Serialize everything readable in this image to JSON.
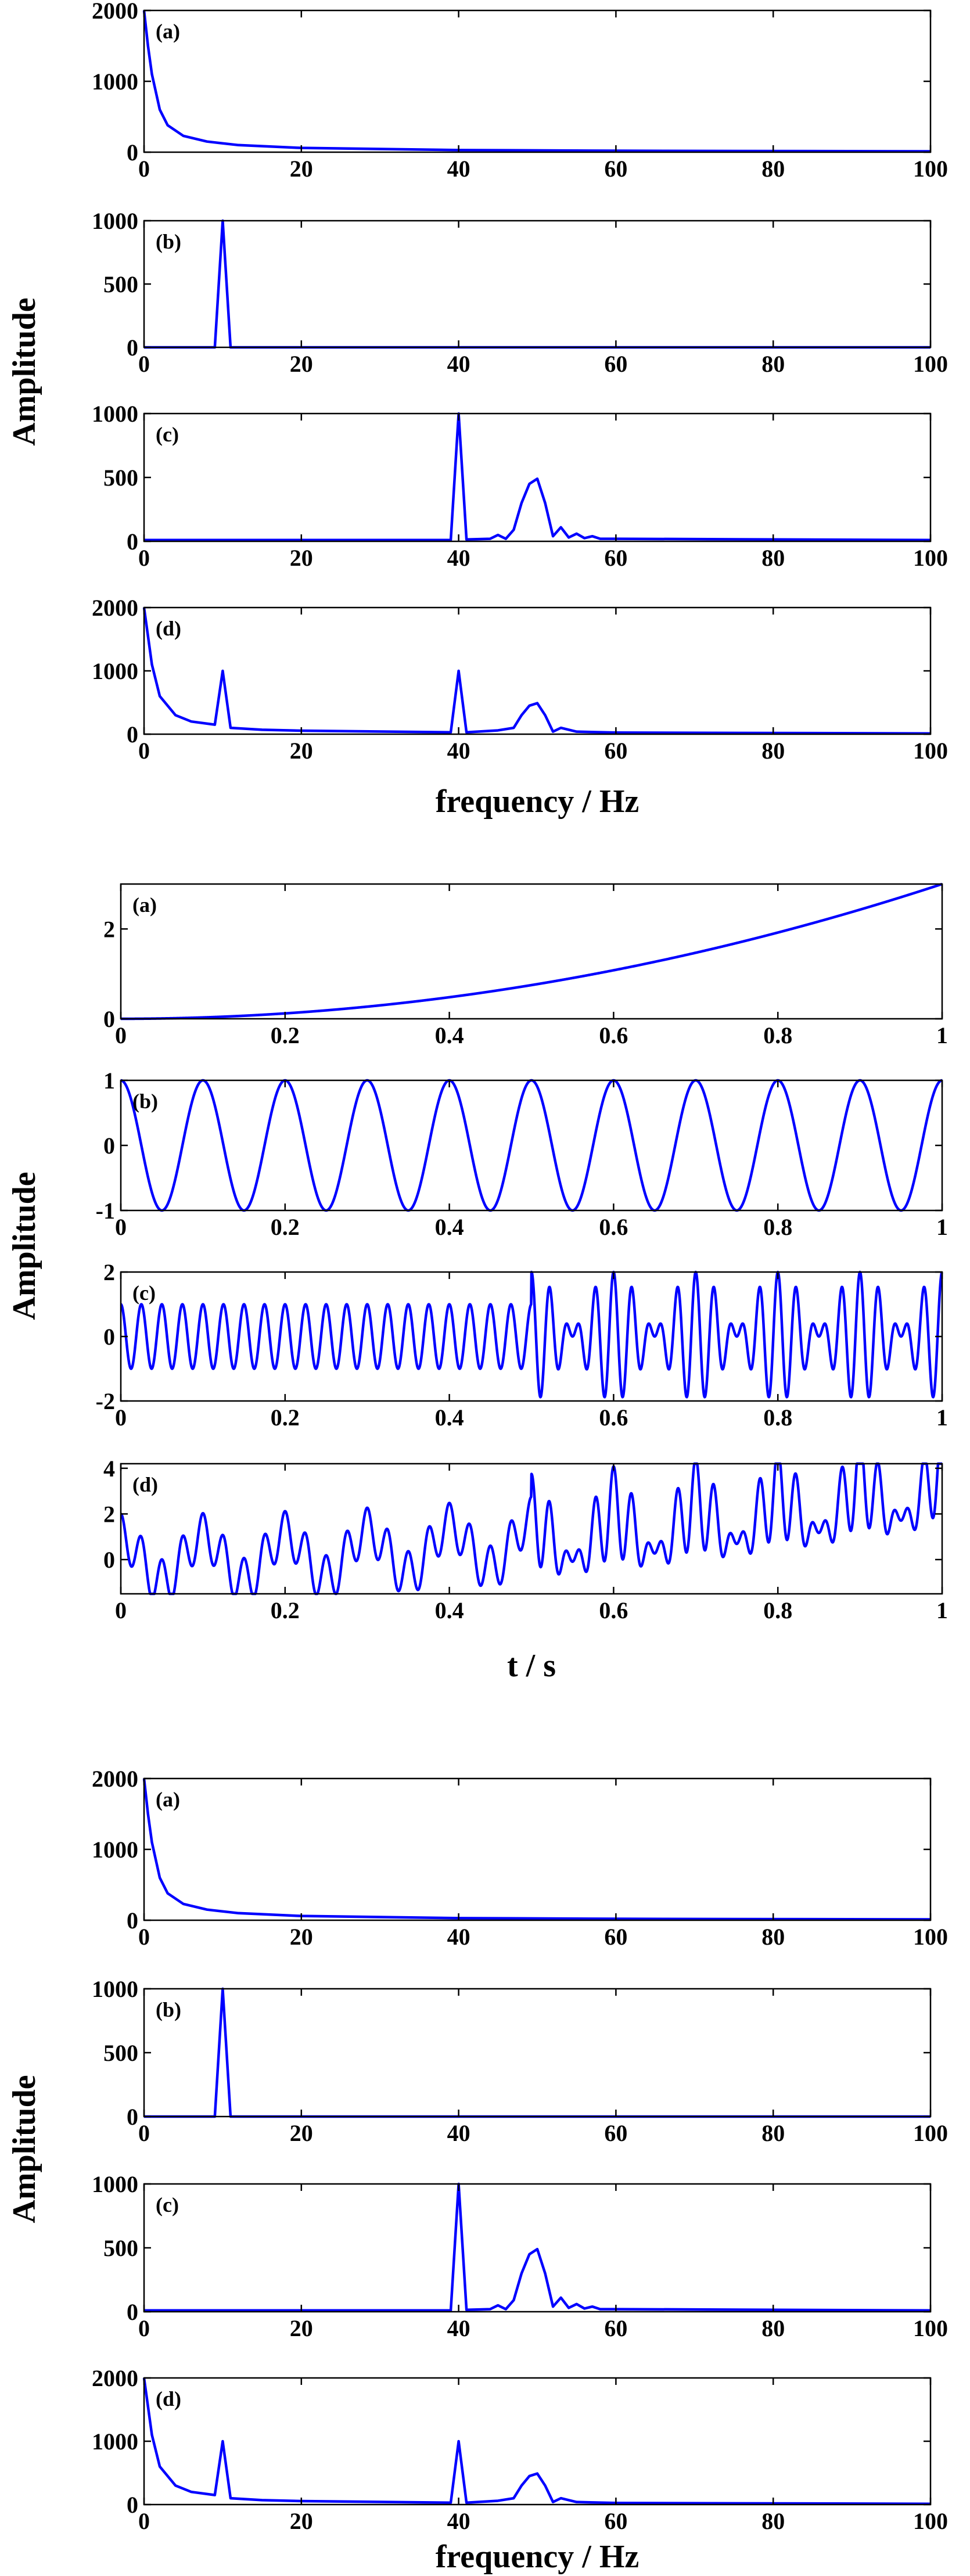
{
  "figures": [
    {
      "name": "spectra-figure-1",
      "xlabel": "frequency / Hz",
      "ylabel": "Amplitude",
      "xticks": [
        "0",
        "20",
        "40",
        "60",
        "80",
        "100"
      ]
    },
    {
      "name": "time-signals-figure",
      "xlabel": "t / s",
      "ylabel": "Amplitude",
      "xticks": [
        "0",
        "0.2",
        "0.4",
        "0.6",
        "0.8",
        "1"
      ]
    },
    {
      "name": "spectra-figure-2",
      "xlabel": "frequency / Hz",
      "ylabel": "Amplitude",
      "xticks": [
        "0",
        "20",
        "40",
        "60",
        "80",
        "100"
      ]
    }
  ],
  "colors": {
    "line": "#0000ff",
    "axes": "#000000"
  },
  "chart_data": [
    {
      "type": "line",
      "title": "",
      "xlabel": "frequency / Hz",
      "ylabel": "Amplitude",
      "panels": [
        {
          "label": "(a)",
          "xlim": [
            0,
            100
          ],
          "ylim": [
            0,
            2000
          ],
          "yticks": [
            "0",
            "1000",
            "2000"
          ],
          "series": [
            {
              "name": "(a)",
              "points": [
                [
                  0,
                  2000
                ],
                [
                  0.5,
                  1500
                ],
                [
                  1,
                  1100
                ],
                [
                  2,
                  600
                ],
                [
                  3,
                  380
                ],
                [
                  5,
                  230
                ],
                [
                  8,
                  150
                ],
                [
                  12,
                  100
                ],
                [
                  20,
                  60
                ],
                [
                  40,
                  30
                ],
                [
                  60,
                  20
                ],
                [
                  100,
                  12
                ]
              ]
            }
          ]
        },
        {
          "label": "(b)",
          "xlim": [
            0,
            100
          ],
          "ylim": [
            0,
            1000
          ],
          "yticks": [
            "0",
            "500",
            "1000"
          ],
          "series": [
            {
              "name": "(b)",
              "points": [
                [
                  0,
                  0
                ],
                [
                  9,
                  0
                ],
                [
                  10,
                  1000
                ],
                [
                  11,
                  0
                ],
                [
                  100,
                  0
                ]
              ]
            }
          ]
        },
        {
          "label": "(c)",
          "xlim": [
            0,
            100
          ],
          "ylim": [
            0,
            1000
          ],
          "yticks": [
            "0",
            "500",
            "1000"
          ],
          "series": [
            {
              "name": "(c)",
              "points": [
                [
                  0,
                  10
                ],
                [
                  39,
                  10
                ],
                [
                  40,
                  1000
                ],
                [
                  41,
                  15
                ],
                [
                  44,
                  20
                ],
                [
                  45,
                  50
                ],
                [
                  46,
                  20
                ],
                [
                  47,
                  90
                ],
                [
                  48,
                  300
                ],
                [
                  49,
                  450
                ],
                [
                  50,
                  490
                ],
                [
                  51,
                  300
                ],
                [
                  52,
                  40
                ],
                [
                  53,
                  110
                ],
                [
                  54,
                  30
                ],
                [
                  55,
                  60
                ],
                [
                  56,
                  25
                ],
                [
                  57,
                  40
                ],
                [
                  58,
                  20
                ],
                [
                  60,
                  20
                ],
                [
                  100,
                  10
                ]
              ]
            }
          ]
        },
        {
          "label": "(d)",
          "xlim": [
            0,
            100
          ],
          "ylim": [
            0,
            2000
          ],
          "yticks": [
            "0",
            "1000",
            "2000"
          ],
          "series": [
            {
              "name": "(d)",
              "points": [
                [
                  0,
                  2000
                ],
                [
                  1,
                  1100
                ],
                [
                  2,
                  600
                ],
                [
                  4,
                  300
                ],
                [
                  6,
                  200
                ],
                [
                  9,
                  150
                ],
                [
                  10,
                  1000
                ],
                [
                  11,
                  100
                ],
                [
                  15,
                  70
                ],
                [
                  20,
                  55
                ],
                [
                  39,
                  30
                ],
                [
                  40,
                  1000
                ],
                [
                  41,
                  30
                ],
                [
                  45,
                  60
                ],
                [
                  47,
                  100
                ],
                [
                  48,
                  300
                ],
                [
                  49,
                  450
                ],
                [
                  50,
                  490
                ],
                [
                  51,
                  300
                ],
                [
                  52,
                  40
                ],
                [
                  53,
                  100
                ],
                [
                  55,
                  40
                ],
                [
                  60,
                  25
                ],
                [
                  100,
                  12
                ]
              ]
            }
          ]
        }
      ]
    },
    {
      "type": "line",
      "title": "",
      "xlabel": "t / s",
      "ylabel": "Amplitude",
      "panels": [
        {
          "label": "(a)",
          "xlim": [
            0,
            1
          ],
          "ylim": [
            0,
            3
          ],
          "yticks": [
            "0",
            "2"
          ],
          "ytick_values": [
            0,
            2
          ],
          "series": [
            {
              "name": "(a)",
              "formula": "3*t^2"
            }
          ]
        },
        {
          "label": "(b)",
          "xlim": [
            0,
            1
          ],
          "ylim": [
            -1,
            1
          ],
          "yticks": [
            "-1",
            "0",
            "1"
          ],
          "ytick_values": [
            -1,
            0,
            1
          ],
          "series": [
            {
              "name": "(b)",
              "formula": "cos(2*pi*10*t)"
            }
          ]
        },
        {
          "label": "(c)",
          "xlim": [
            0,
            1
          ],
          "ylim": [
            -2,
            2
          ],
          "yticks": [
            "-2",
            "0",
            "2"
          ],
          "ytick_values": [
            -2,
            0,
            2
          ],
          "series": [
            {
              "name": "(c)",
              "formula": "cos(2*pi*40*t); t>=0.5: cos(2*pi*40*t)+cos(2*pi*50*t)"
            }
          ]
        },
        {
          "label": "(d)",
          "xlim": [
            0,
            1
          ],
          "ylim": [
            -1.5,
            4.2
          ],
          "yticks": [
            "0",
            "2",
            "4"
          ],
          "ytick_values": [
            0,
            2,
            4
          ],
          "series": [
            {
              "name": "(d)",
              "formula": "sum of (a), (b) and (c)"
            }
          ]
        }
      ]
    },
    {
      "type": "line",
      "title": "",
      "xlabel": "frequency / Hz",
      "ylabel": "Amplitude",
      "panels": [
        {
          "label": "(a)",
          "xlim": [
            0,
            100
          ],
          "ylim": [
            0,
            2000
          ],
          "yticks": [
            "0",
            "1000",
            "2000"
          ],
          "series": [
            {
              "name": "(a)",
              "points": [
                [
                  0,
                  2000
                ],
                [
                  0.5,
                  1500
                ],
                [
                  1,
                  1100
                ],
                [
                  2,
                  600
                ],
                [
                  3,
                  380
                ],
                [
                  5,
                  230
                ],
                [
                  8,
                  150
                ],
                [
                  12,
                  100
                ],
                [
                  20,
                  60
                ],
                [
                  40,
                  30
                ],
                [
                  60,
                  20
                ],
                [
                  100,
                  12
                ]
              ]
            }
          ]
        },
        {
          "label": "(b)",
          "xlim": [
            0,
            100
          ],
          "ylim": [
            0,
            1000
          ],
          "yticks": [
            "0",
            "500",
            "1000"
          ],
          "series": [
            {
              "name": "(b)",
              "points": [
                [
                  0,
                  0
                ],
                [
                  9,
                  0
                ],
                [
                  10,
                  1000
                ],
                [
                  11,
                  0
                ],
                [
                  100,
                  0
                ]
              ]
            }
          ]
        },
        {
          "label": "(c)",
          "xlim": [
            0,
            100
          ],
          "ylim": [
            0,
            1000
          ],
          "yticks": [
            "0",
            "500",
            "1000"
          ],
          "series": [
            {
              "name": "(c)",
              "points": [
                [
                  0,
                  10
                ],
                [
                  39,
                  10
                ],
                [
                  40,
                  1000
                ],
                [
                  41,
                  15
                ],
                [
                  44,
                  20
                ],
                [
                  45,
                  50
                ],
                [
                  46,
                  20
                ],
                [
                  47,
                  90
                ],
                [
                  48,
                  300
                ],
                [
                  49,
                  450
                ],
                [
                  50,
                  490
                ],
                [
                  51,
                  300
                ],
                [
                  52,
                  40
                ],
                [
                  53,
                  110
                ],
                [
                  54,
                  30
                ],
                [
                  55,
                  60
                ],
                [
                  56,
                  25
                ],
                [
                  57,
                  40
                ],
                [
                  58,
                  20
                ],
                [
                  60,
                  20
                ],
                [
                  100,
                  10
                ]
              ]
            }
          ]
        },
        {
          "label": "(d)",
          "xlim": [
            0,
            100
          ],
          "ylim": [
            0,
            2000
          ],
          "yticks": [
            "0",
            "1000",
            "2000"
          ],
          "series": [
            {
              "name": "(d)",
              "points": [
                [
                  0,
                  2000
                ],
                [
                  1,
                  1100
                ],
                [
                  2,
                  600
                ],
                [
                  4,
                  300
                ],
                [
                  6,
                  200
                ],
                [
                  9,
                  150
                ],
                [
                  10,
                  1000
                ],
                [
                  11,
                  100
                ],
                [
                  15,
                  70
                ],
                [
                  20,
                  55
                ],
                [
                  39,
                  30
                ],
                [
                  40,
                  1000
                ],
                [
                  41,
                  30
                ],
                [
                  45,
                  60
                ],
                [
                  47,
                  100
                ],
                [
                  48,
                  300
                ],
                [
                  49,
                  450
                ],
                [
                  50,
                  490
                ],
                [
                  51,
                  300
                ],
                [
                  52,
                  40
                ],
                [
                  53,
                  100
                ],
                [
                  55,
                  40
                ],
                [
                  60,
                  25
                ],
                [
                  100,
                  12
                ]
              ]
            }
          ]
        }
      ]
    }
  ]
}
